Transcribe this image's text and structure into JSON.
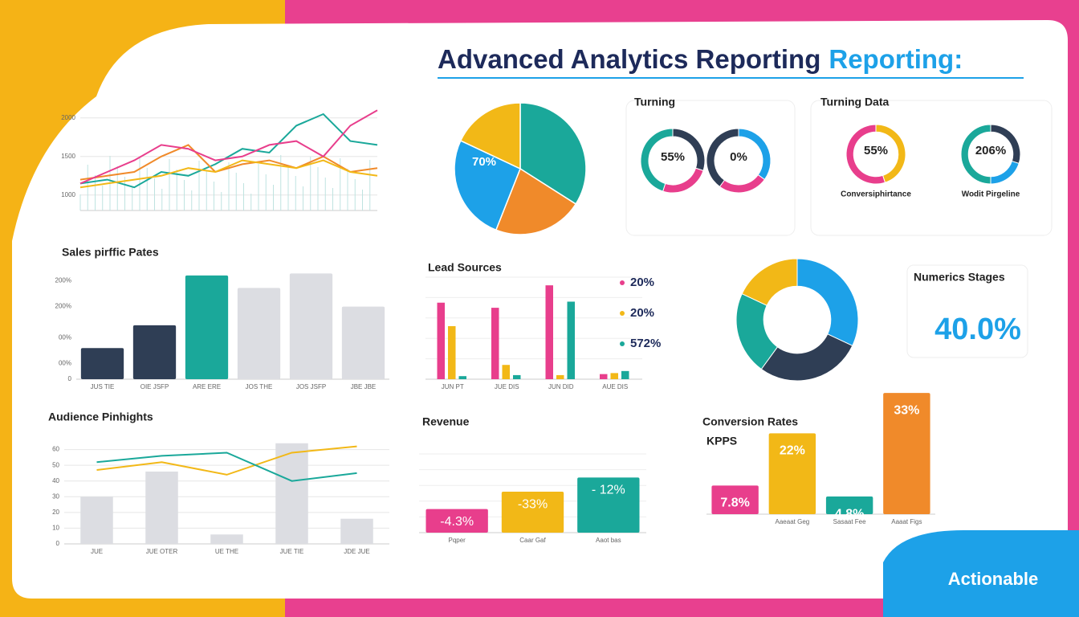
{
  "header": {
    "title": "Advanced Analytics Reporting",
    "accent": "Reporting:"
  },
  "badge": "Actionable",
  "chart_data": [
    {
      "type": "line",
      "categories": [
        null,
        null,
        null,
        null,
        null,
        null,
        null,
        null,
        null,
        null,
        null,
        null
      ],
      "ylim": [
        800,
        2300
      ],
      "yticks": [
        1000,
        1500,
        2000
      ],
      "grid": true,
      "series": [
        {
          "name": null,
          "color": "#1aa89a",
          "values": [
            1150,
            1200,
            1100,
            1300,
            1250,
            1400,
            1600,
            1550,
            1900,
            2050,
            1700,
            1650
          ]
        },
        {
          "name": null,
          "color": "#f08a2a",
          "values": [
            1200,
            1250,
            1300,
            1500,
            1650,
            1300,
            1400,
            1450,
            1350,
            1500,
            1300,
            1350
          ]
        },
        {
          "name": null,
          "color": "#e83e8c",
          "values": [
            1150,
            1300,
            1450,
            1650,
            1600,
            1450,
            1500,
            1650,
            1700,
            1500,
            1900,
            2100
          ]
        },
        {
          "name": null,
          "color": "#f2b817",
          "values": [
            1100,
            1150,
            1200,
            1250,
            1350,
            1300,
            1450,
            1400,
            1350,
            1450,
            1300,
            1250
          ]
        }
      ]
    },
    {
      "type": "pie",
      "values": [
        34,
        22,
        26,
        18
      ],
      "colors": [
        "#1aa89a",
        "#f08a2a",
        "#1da1e8",
        "#f2b817"
      ],
      "center_label": "70%"
    },
    {
      "type": "donut",
      "title": "Turning",
      "values": [
        30,
        25,
        45
      ],
      "colors": [
        "#2f3e55",
        "#e83e8c",
        "#1aa89a"
      ],
      "center_label": "55%"
    },
    {
      "type": "donut",
      "values": [
        35,
        25,
        40
      ],
      "colors": [
        "#1da1e8",
        "#e83e8c",
        "#2f3e55"
      ],
      "center_label": "0%"
    },
    {
      "type": "donut",
      "title": "Turning Data",
      "values": [
        45,
        55
      ],
      "colors": [
        "#f2b817",
        "#e83e8c"
      ],
      "center_label": "55%",
      "caption": "Conversiphirtance"
    },
    {
      "type": "donut",
      "values": [
        30,
        20,
        50
      ],
      "colors": [
        "#2f3e55",
        "#1da1e8",
        "#1aa89a"
      ],
      "center_label": "206%",
      "caption": "Wodit Pirgeline"
    },
    {
      "type": "bar",
      "title": "Sales pirffic Pates",
      "categories": [
        "JUS TIE",
        "OIE JSFP",
        "ARE ERE",
        "JOS THE",
        "JOS JSFP",
        "JBE JBE"
      ],
      "values": [
        30,
        52,
        100,
        88,
        102,
        70
      ],
      "colors": [
        "#2f3e55",
        "#2f3e55",
        "#1aa89a",
        "#dcdde2",
        "#dcdde2",
        "#dcdde2"
      ],
      "ylim": [
        0,
        110
      ],
      "yticks": [
        0,
        {
          "value": 15,
          "label": "00%"
        },
        {
          "value": 40,
          "label": "00%"
        },
        {
          "value": 70,
          "label": "200%"
        },
        {
          "value": 95,
          "label": "200%"
        }
      ],
      "grid": false
    },
    {
      "type": "bar",
      "title": "Lead Sources",
      "categories": [
        "JUN PT",
        "JUE DIS",
        "JUN DID",
        "AUE DIS"
      ],
      "ylim": [
        0,
        100
      ],
      "grid": true,
      "series": [
        {
          "name": "20%",
          "color": "#e83e8c",
          "values": [
            75,
            70,
            92,
            5
          ]
        },
        {
          "name": "20%",
          "color": "#f2b817",
          "values": [
            52,
            14,
            4,
            6
          ]
        },
        {
          "name": "572%",
          "color": "#1aa89a",
          "values": [
            3,
            4,
            76,
            8
          ]
        }
      ]
    },
    {
      "type": "donut",
      "title": "Numerics Stages",
      "values": [
        32,
        28,
        22,
        18
      ],
      "colors": [
        "#1da1e8",
        "#2f3e55",
        "#1aa89a",
        "#f2b817"
      ],
      "center_label": "40.0%"
    },
    {
      "type": "combo",
      "title": "Audience Pinhights",
      "categories": [
        "JUE",
        "JUE OTER",
        "UE THE",
        "JUE TIE",
        "JDE JUE"
      ],
      "ylim": [
        0,
        70
      ],
      "yticks": [
        0,
        10,
        20,
        30,
        40,
        50,
        60
      ],
      "grid": true,
      "series": [
        {
          "name": null,
          "kind": "bar",
          "color": "#dcdde2",
          "values": [
            30,
            46,
            6,
            64,
            16
          ]
        },
        {
          "name": null,
          "kind": "line",
          "color": "#f2b817",
          "values": [
            47,
            52,
            44,
            58,
            62
          ]
        },
        {
          "name": null,
          "kind": "line",
          "color": "#1aa89a",
          "values": [
            52,
            56,
            58,
            40,
            45
          ]
        }
      ]
    },
    {
      "type": "bar",
      "title": "Revenue",
      "categories": [
        "Pqper",
        "Caar Gaf",
        "Aaot bas"
      ],
      "values": [
        30,
        52,
        70
      ],
      "colors": [
        "#e83e8c",
        "#f2b817",
        "#1aa89a"
      ],
      "annotations": [
        "-4.3%",
        "-33%",
        "- 12%"
      ],
      "ylim": [
        0,
        100
      ],
      "grid": true
    },
    {
      "type": "bar",
      "title": "Conversion Rates",
      "subtitle": "KPPS",
      "categories": [
        null,
        "Aaeaat Geg",
        "Sasaat Fee",
        "Aaaat Figs"
      ],
      "values": [
        7.8,
        22,
        4.8,
        33
      ],
      "value_labels": [
        "7.8%",
        "22%",
        "4.8%",
        "33%"
      ],
      "colors": [
        "#e83e8c",
        "#f2b817",
        "#1aa89a",
        "#f08a2a"
      ],
      "ylim": [
        0,
        35
      ],
      "grid": false
    }
  ]
}
